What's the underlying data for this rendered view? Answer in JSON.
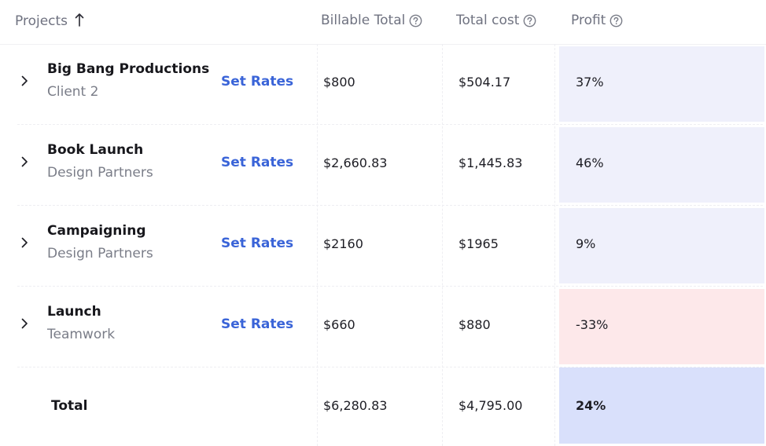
{
  "header": {
    "projects_label": "Projects",
    "billable_label": "Billable Total",
    "cost_label": "Total cost",
    "profit_label": "Profit",
    "sort_icon": "arrow-up-icon",
    "help_icon": "question-circle-icon"
  },
  "rows": [
    {
      "name": "Big Bang Productions",
      "client": "Client 2",
      "action": "Set Rates",
      "billable": "$800",
      "cost": "$504.17",
      "profit": "37%",
      "profit_color": "#eff0fb"
    },
    {
      "name": "Book Launch",
      "client": "Design Partners",
      "action": "Set Rates",
      "billable": "$2,660.83",
      "cost": "$1,445.83",
      "profit": "46%",
      "profit_color": "#eff0fb"
    },
    {
      "name": "Campaigning",
      "client": "Design Partners",
      "action": "Set Rates",
      "billable": "$2160",
      "cost": "$1965",
      "profit": "9%",
      "profit_color": "#eff0fb"
    },
    {
      "name": "Launch",
      "client": "Teamwork",
      "action": "Set Rates",
      "billable": "$660",
      "cost": "$880",
      "profit": "-33%",
      "profit_color": "#fde8ea"
    }
  ],
  "total": {
    "label": "Total",
    "billable": "$6,280.83",
    "cost": "$4,795.00",
    "profit": "24%",
    "profit_color": "#d9e0fb"
  },
  "colors": {
    "accent": "#3a64d8",
    "positive_profit_bg": "#eff0fb",
    "negative_profit_bg": "#fde8ea",
    "total_profit_bg": "#d9e0fb"
  }
}
